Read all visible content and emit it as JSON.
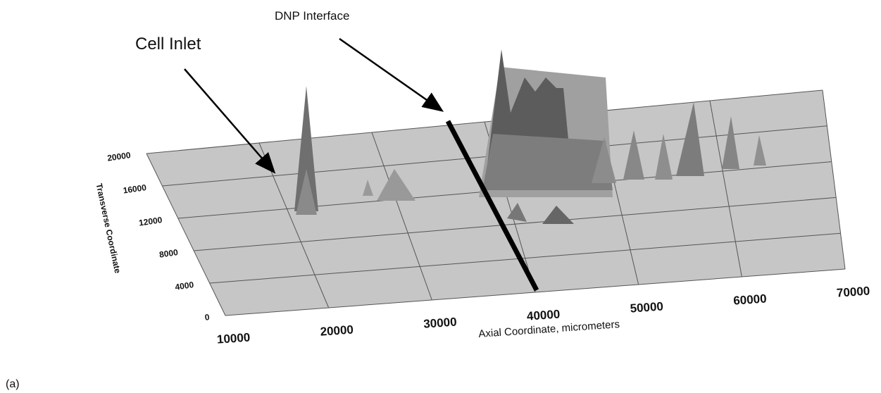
{
  "chart_data": {
    "type": "surface",
    "xlabel": "Axial Coordinate, micrometers",
    "ylabel": "Transverse Coordinate",
    "xlim": [
      10000,
      70000
    ],
    "xticks": [
      10000,
      20000,
      30000,
      40000,
      50000,
      60000,
      70000
    ],
    "ylim": [
      0,
      20000
    ],
    "yticks": [
      0,
      4000,
      8000,
      12000,
      16000,
      20000
    ],
    "grid": true,
    "plane_color": "#c6c6c6",
    "annotations": [
      {
        "text": "Cell Inlet"
      },
      {
        "text": "DNP Interface"
      }
    ]
  },
  "caption": "(a)"
}
